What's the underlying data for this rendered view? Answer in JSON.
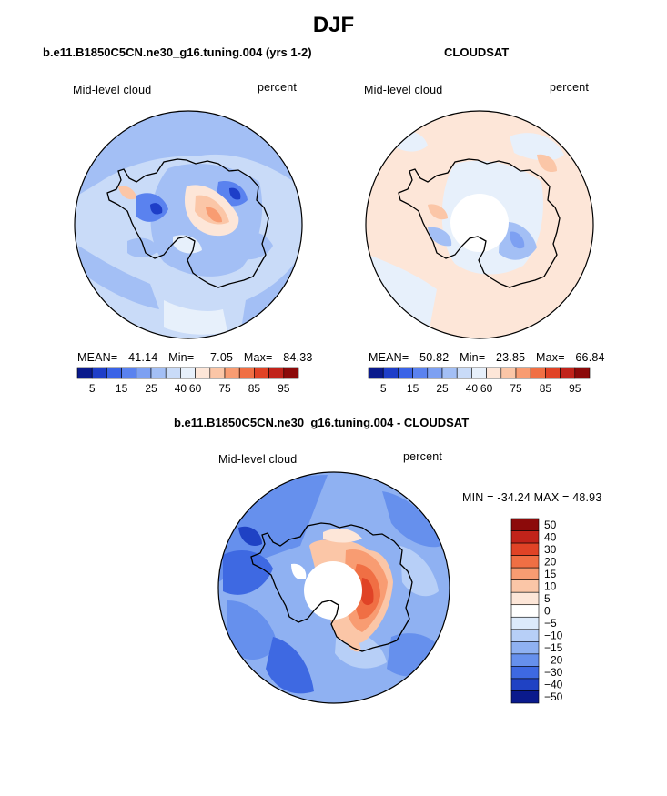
{
  "title": "DJF",
  "panels": [
    {
      "id": "model",
      "title": "b.e11.B1850C5CN.ne30_g16.tuning.004 (yrs 1-2)",
      "variable": "Mid-level cloud",
      "units": "percent",
      "stats": {
        "mean_label": "MEAN=",
        "mean": "41.14",
        "min_label": "Min=",
        "min": "7.05",
        "max_label": "Max=",
        "max": "84.33"
      },
      "colorbar_ticks": [
        "5",
        "15",
        "25",
        "40",
        "60",
        "75",
        "85",
        "95"
      ]
    },
    {
      "id": "obs",
      "title": "CLOUDSAT",
      "variable": "Mid-level cloud",
      "units": "percent",
      "stats": {
        "mean_label": "MEAN=",
        "mean": "50.82",
        "min_label": "Min=",
        "min": "23.85",
        "max_label": "Max=",
        "max": "66.84"
      },
      "colorbar_ticks": [
        "5",
        "15",
        "25",
        "40",
        "60",
        "75",
        "85",
        "95"
      ]
    },
    {
      "id": "diff",
      "title": "b.e11.B1850C5CN.ne30_g16.tuning.004 - CLOUDSAT",
      "variable": "Mid-level cloud",
      "units": "percent",
      "stats_text": "MIN = -34.24 MAX =  48.93",
      "colorbar_labels": [
        "50",
        "40",
        "30",
        "20",
        "15",
        "10",
        "5",
        "0",
        "−5",
        "−10",
        "−15",
        "−20",
        "−30",
        "−40",
        "−50"
      ]
    }
  ],
  "colors": {
    "seq": [
      "#0a1a8c",
      "#1e3ec8",
      "#3a63e6",
      "#5a82ef",
      "#7da0f2",
      "#a3bff5",
      "#c9dbf8",
      "#e7f0fb",
      "#fde6d8",
      "#fbc6a7",
      "#f89c72",
      "#f06f44",
      "#e04326",
      "#c1231a",
      "#8c0a0a"
    ],
    "div": [
      "#8c0a0a",
      "#c1231a",
      "#e04326",
      "#f06f44",
      "#f89c72",
      "#fbc6a7",
      "#fde6d8",
      "#ffffff",
      "#dceafb",
      "#b7cff7",
      "#8fb1f2",
      "#6690ed",
      "#3e69e2",
      "#1f42c4",
      "#0a1a8c"
    ]
  },
  "chart_data": [
    {
      "type": "heatmap",
      "projection": "south polar stereographic",
      "title": "b.e11.B1850C5CN.ne30_g16.tuning.004 (yrs 1-2)",
      "variable": "Mid-level cloud",
      "units": "percent",
      "mean": 41.14,
      "min": 7.05,
      "max": 84.33,
      "levels": [
        5,
        10,
        15,
        20,
        25,
        30,
        40,
        50,
        60,
        70,
        75,
        80,
        85,
        90,
        95
      ]
    },
    {
      "type": "heatmap",
      "projection": "south polar stereographic",
      "title": "CLOUDSAT",
      "variable": "Mid-level cloud",
      "units": "percent",
      "mean": 50.82,
      "min": 23.85,
      "max": 66.84,
      "levels": [
        5,
        10,
        15,
        20,
        25,
        30,
        40,
        50,
        60,
        70,
        75,
        80,
        85,
        90,
        95
      ]
    },
    {
      "type": "heatmap",
      "projection": "south polar stereographic",
      "title": "b.e11.B1850C5CN.ne30_g16.tuning.004 - CLOUDSAT",
      "variable": "Mid-level cloud",
      "units": "percent",
      "min": -34.24,
      "max": 48.93,
      "levels": [
        -50,
        -40,
        -30,
        -20,
        -15,
        -10,
        -5,
        0,
        5,
        10,
        15,
        20,
        30,
        40,
        50
      ]
    }
  ]
}
